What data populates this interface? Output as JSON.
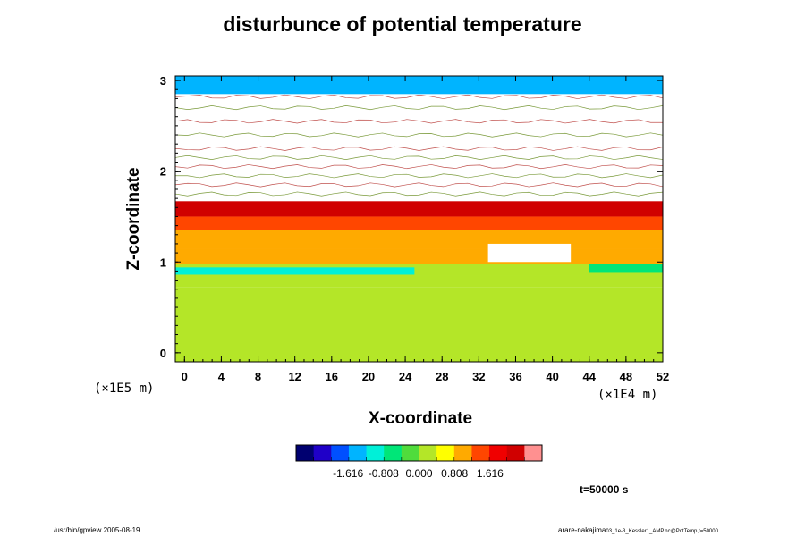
{
  "chart_data": {
    "type": "heatmap",
    "title": "disturbunce of potential temperature",
    "xlabel": "X-coordinate",
    "ylabel": "Z-coordinate",
    "x_unit": "(×1E4 m)",
    "y_unit": "(×1E5 m)",
    "xlim": [
      -1,
      52
    ],
    "ylim": [
      -0.1,
      3.05
    ],
    "x_ticks": [
      "0",
      "4",
      "8",
      "12",
      "16",
      "20",
      "24",
      "28",
      "32",
      "36",
      "40",
      "44",
      "48",
      "52"
    ],
    "y_ticks": [
      "0",
      "1",
      "2",
      "3"
    ],
    "colorbar": {
      "range": [
        -2.8,
        2.8
      ],
      "tick_labels": [
        "-1.616",
        "-0.808",
        "0.000",
        "0.808",
        "1.616"
      ],
      "colors": [
        "#000070",
        "#1f00c8",
        "#0050ff",
        "#00b4ff",
        "#00f0d8",
        "#00e678",
        "#50dc3c",
        "#b4e628",
        "#ffff00",
        "#ffaa00",
        "#ff4600",
        "#f00000",
        "#d00000",
        "#ff9090"
      ]
    },
    "regions": [
      {
        "x_range": [
          -1,
          52
        ],
        "z_range": [
          -0.1,
          0.72
        ],
        "value": 0.0
      },
      {
        "x_range": [
          -1,
          52
        ],
        "z_range": [
          0.72,
          0.85
        ],
        "value": 0.15
      },
      {
        "x_range": [
          -1,
          52
        ],
        "z_range": [
          0.85,
          0.98
        ],
        "value": 0.35
      },
      {
        "x_range": [
          -1,
          52
        ],
        "z_range": [
          0.98,
          1.15
        ],
        "value": 0.9
      },
      {
        "x_range": [
          -1,
          52
        ],
        "z_range": [
          1.15,
          1.35
        ],
        "value": 1.1
      },
      {
        "x_range": [
          -1,
          52
        ],
        "z_range": [
          1.35,
          1.5
        ],
        "value": 1.5
      },
      {
        "x_range": [
          -1,
          52
        ],
        "z_range": [
          1.5,
          1.67
        ],
        "value": 2.1
      },
      {
        "x_range": [
          -1,
          52
        ],
        "z_range": [
          1.67,
          3.05
        ],
        "value": null
      }
    ],
    "features": [
      {
        "x_range": [
          -1,
          25
        ],
        "z_range": [
          0.86,
          0.94
        ],
        "value": -0.9
      },
      {
        "x_range": [
          44,
          52
        ],
        "z_range": [
          0.88,
          0.98
        ],
        "value": -0.8
      },
      {
        "x_range": [
          33,
          42
        ],
        "z_range": [
          1.0,
          1.2
        ],
        "value": null
      },
      {
        "x_range": [
          -1,
          52
        ],
        "z_range": [
          2.85,
          3.05
        ],
        "value": -1.3
      }
    ],
    "contour_levels_z": [
      1.75,
      1.85,
      1.95,
      2.05,
      2.15,
      2.25,
      2.4,
      2.55,
      2.7,
      2.82
    ]
  },
  "annotations": {
    "timestamp": "t=50000 s",
    "footer_left": "/usr/bin/gpview 2005-08-19",
    "footer_right_main": "arare-nakajima",
    "footer_right_small": "03_1e-3_Kessler1_AMP.nc@PotTemp,t=50000"
  }
}
